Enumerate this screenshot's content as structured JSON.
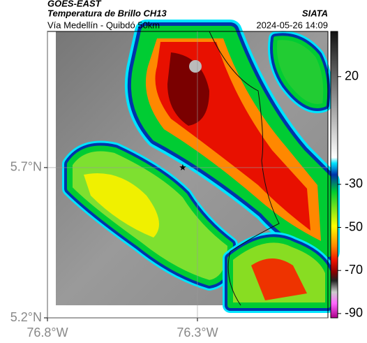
{
  "header": {
    "title": "GOES-EAST",
    "subtitle": "Temperatura de Brillo CH13",
    "source": "SIATA",
    "route": "Vía Medellín - Quibdó 50km",
    "timestamp": "2024-05-26 14:09"
  },
  "map": {
    "xlim": [
      -76.8,
      -75.865
    ],
    "ylim": [
      5.2,
      6.153
    ],
    "xticks": [
      {
        "value": -76.8,
        "label": "76.8°W"
      },
      {
        "value": -76.3,
        "label": "76.3°W"
      }
    ],
    "yticks": [
      {
        "value": 5.2,
        "label": "5.2°N"
      },
      {
        "value": 5.7,
        "label": "5.7°N"
      }
    ],
    "grid": true,
    "marker": {
      "lon": -76.349,
      "lat": 5.7
    }
  },
  "colorbar": {
    "lim": [
      -92,
      41
    ],
    "ticks": [
      20,
      -30,
      -50,
      -70,
      -90
    ]
  }
}
